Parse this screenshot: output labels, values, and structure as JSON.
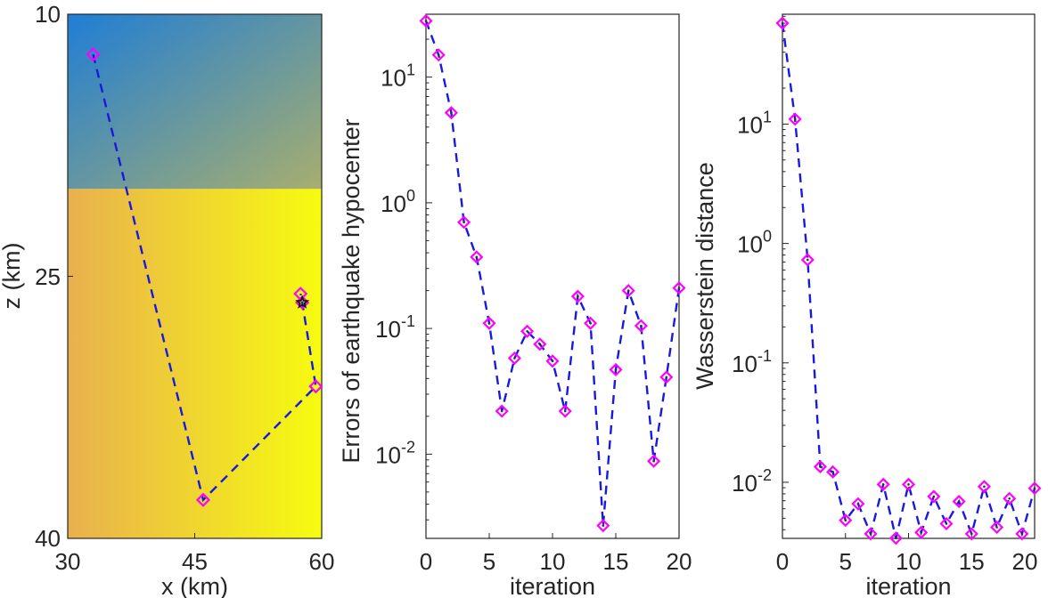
{
  "chart_data": [
    {
      "type": "line",
      "subtype": "trajectory-over-velocity-model",
      "title": "",
      "xlabel": "x (km)",
      "ylabel": "z (km)",
      "xlim": [
        30,
        60
      ],
      "ylim": [
        10,
        40
      ],
      "y_reversed": true,
      "x_ticks": [
        "30",
        "45",
        "60"
      ],
      "y_ticks": [
        "10",
        "25",
        "40"
      ],
      "layer_interface_z": 20,
      "colors": {
        "upper_layer_left": "#1f7ed6",
        "upper_layer_right": "#a8ae6e",
        "lower_layer_left": "#e9b04e",
        "lower_layer_right": "#f6fb10",
        "line": "#1a1adf",
        "marker": "#ff00ff"
      },
      "trajectory": {
        "x": [
          33,
          46,
          59.3,
          57.7,
          57.5
        ],
        "z": [
          12.3,
          37.8,
          31.3,
          26.5,
          26
        ]
      },
      "true_source": {
        "x": 57.7,
        "z": 26.5,
        "marker": "star"
      }
    },
    {
      "type": "line",
      "title": "",
      "xlabel": "iteration",
      "ylabel": "Errors of earthquake hypocenter",
      "yscale": "log",
      "xlim": [
        0,
        20
      ],
      "ylim_log10": [
        -2.67,
        1.5
      ],
      "x_ticks": [
        "0",
        "5",
        "10",
        "15",
        "20"
      ],
      "y_ticks": [
        {
          "base": "10",
          "exp": "-2",
          "log10": -2
        },
        {
          "base": "10",
          "exp": "-1",
          "log10": -1
        },
        {
          "base": "10",
          "exp": "0",
          "log10": 0
        },
        {
          "base": "10",
          "exp": "1",
          "log10": 1
        }
      ],
      "series": [
        {
          "name": "hypocenter error",
          "x": [
            0,
            1,
            2,
            3,
            4,
            5,
            6,
            7,
            8,
            9,
            10,
            11,
            12,
            13,
            14,
            15,
            16,
            17,
            18,
            19,
            20
          ],
          "values": [
            28,
            15,
            5.2,
            0.7,
            0.37,
            0.11,
            0.022,
            0.058,
            0.095,
            0.075,
            0.055,
            0.022,
            0.18,
            0.11,
            0.0027,
            0.047,
            0.2,
            0.105,
            0.0088,
            0.041,
            0.21
          ]
        }
      ]
    },
    {
      "type": "line",
      "title": "",
      "xlabel": "iteration",
      "ylabel": "Wasserstein distance",
      "yscale": "log",
      "xlim": [
        0,
        20
      ],
      "ylim_log10": [
        -2.47,
        1.92
      ],
      "x_ticks": [
        "0",
        "5",
        "10",
        "15",
        "20"
      ],
      "y_ticks": [
        {
          "base": "10",
          "exp": "-2",
          "log10": -2
        },
        {
          "base": "10",
          "exp": "-1",
          "log10": -1
        },
        {
          "base": "10",
          "exp": "0",
          "log10": 0
        },
        {
          "base": "10",
          "exp": "1",
          "log10": 1
        }
      ],
      "series": [
        {
          "name": "Wasserstein distance",
          "x": [
            0,
            1,
            2,
            3,
            4,
            5,
            6,
            7,
            8,
            9,
            10,
            11,
            12,
            13,
            14,
            15,
            16,
            17,
            18,
            19,
            20
          ],
          "values": [
            70,
            11,
            0.73,
            0.0135,
            0.0122,
            0.0048,
            0.0066,
            0.0037,
            0.0096,
            0.0034,
            0.0096,
            0.0038,
            0.0076,
            0.0045,
            0.0069,
            0.0037,
            0.0092,
            0.0042,
            0.0073,
            0.0037,
            0.0089
          ]
        }
      ]
    }
  ]
}
